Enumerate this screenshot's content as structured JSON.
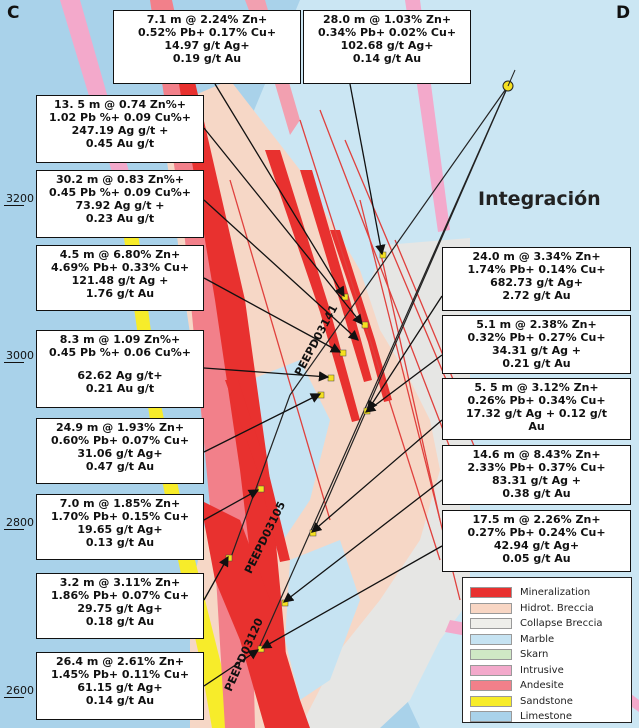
{
  "corners": {
    "left": "C",
    "right": "D"
  },
  "title": "Integración",
  "elevations": [
    "3200",
    "3000",
    "2800",
    "2600"
  ],
  "drillholes": [
    "PEEPD03141",
    "PEEPD03105",
    "PEEPD03120"
  ],
  "intercepts": [
    {
      "lines": [
        "7.1 m @ 2.24% Zn+",
        "0.52% Pb+ 0.17% Cu+",
        "14.97 g/t Ag+",
        "0.19 g/t Au"
      ]
    },
    {
      "lines": [
        "28.0 m @ 1.03% Zn+",
        "0.34% Pb+ 0.02% Cu+",
        "102.68 g/t Ag+",
        "0.14 g/t Au"
      ]
    },
    {
      "lines": [
        "13. 5 m @ 0.74 Zn%+",
        "1.02 Pb %+ 0.09 Cu%+",
        "247.19 Ag g/t +",
        "0.45 Au g/t"
      ]
    },
    {
      "lines": [
        "30.2 m @ 0.83 Zn%+",
        "0.45 Pb %+ 0.09 Cu%+",
        "73.92 Ag g/t +",
        "0.23 Au g/t"
      ]
    },
    {
      "lines": [
        "4.5 m @ 6.80% Zn+",
        "4.69% Pb+ 0.33% Cu+",
        "121.48 g/t Ag +",
        "1.76 g/t Au"
      ]
    },
    {
      "lines": [
        "8.3 m @ 1.09 Zn%+",
        "0.45 Pb %+ 0.06 Cu%+",
        "",
        "62.62 Ag g/t+",
        "0.21 Au g/t"
      ]
    },
    {
      "lines": [
        "24.9 m @ 1.93% Zn+",
        "0.60% Pb+ 0.07% Cu+",
        "31.06 g/t Ag+",
        "0.47 g/t Au"
      ]
    },
    {
      "lines": [
        "7.0 m @ 1.85% Zn+",
        "1.70% Pb+ 0.15% Cu+",
        "19.65 g/t Ag+",
        "0.13 g/t Au"
      ]
    },
    {
      "lines": [
        "3.2 m @ 3.11% Zn+",
        "1.86% Pb+ 0.07% Cu+",
        "29.75 g/t Ag+",
        "0.18 g/t Au"
      ]
    },
    {
      "lines": [
        "26.4 m @ 2.61% Zn+",
        "1.45% Pb+ 0.11% Cu+",
        "61.15 g/t Ag+",
        "0.14 g/t Au"
      ]
    },
    {
      "lines": [
        "24.0 m @ 3.34% Zn+",
        "1.74% Pb+ 0.14% Cu+",
        "682.73 g/t Ag+",
        "2.72 g/t Au"
      ]
    },
    {
      "lines": [
        "5.1 m @ 2.38% Zn+",
        "0.32% Pb+ 0.27% Cu+",
        "34.31 g/t Ag +",
        "0.21 g/t Au"
      ]
    },
    {
      "lines": [
        "5. 5 m @ 3.12% Zn+",
        "0.26% Pb+ 0.34% Cu+",
        "17.32 g/t Ag + 0.12 g/t",
        "Au"
      ]
    },
    {
      "lines": [
        "14.6 m @ 8.43% Zn+",
        "2.33% Pb+ 0.37% Cu+",
        "83.31 g/t Ag +",
        "0.38 g/t Au"
      ]
    },
    {
      "lines": [
        "17.5 m  @ 2.26% Zn+",
        "0.27% Pb+ 0.24% Cu+",
        "42.94 g/t Ag+",
        "0.05 g/t Au"
      ]
    }
  ],
  "legend": [
    {
      "label": "Mineralization",
      "color": "#e8312f"
    },
    {
      "label": "Hidrot. Breccia",
      "color": "#f8d6c4"
    },
    {
      "label": "Collapse Breccia",
      "color": "#eeeeea"
    },
    {
      "label": "Marble",
      "color": "#c6e3f2"
    },
    {
      "label": "Skarn",
      "color": "#cfe8c5"
    },
    {
      "label": "Intrusive",
      "color": "#f3a9cb"
    },
    {
      "label": "Andesite",
      "color": "#f2808a"
    },
    {
      "label": "Sandstone",
      "color": "#f7ec2a"
    },
    {
      "label": "Limestone",
      "color": "#a9d2ea"
    }
  ]
}
